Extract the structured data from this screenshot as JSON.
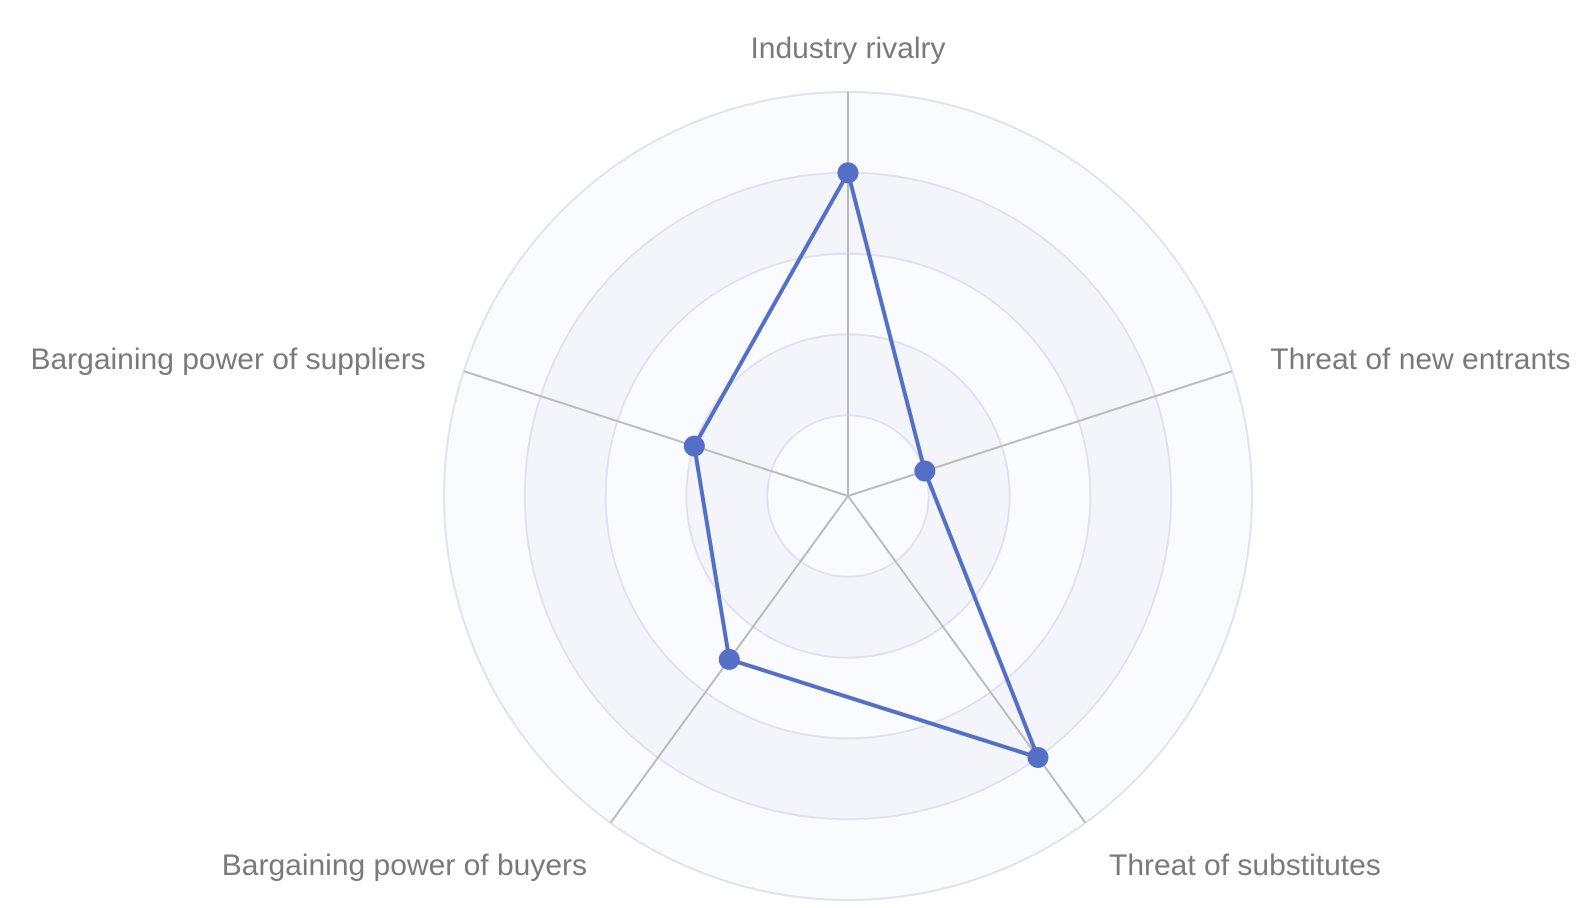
{
  "chart_data": {
    "type": "radar",
    "max": 5,
    "rings": 5,
    "axes": [
      "Industry rivalry",
      "Threat of new entrants",
      "Threat of substitutes",
      "Bargaining power of buyers",
      "Bargaining power of suppliers"
    ],
    "series": [
      {
        "values": [
          4,
          1,
          4,
          2.5,
          2
        ],
        "color": "#5470c6"
      }
    ],
    "split_area_colors": [
      "#fafbfe",
      "#f3f5fb"
    ],
    "split_line_color": "#dfe3f0",
    "axis_line_color": "#bbbbbb",
    "label_color": "#7a7a7a"
  }
}
